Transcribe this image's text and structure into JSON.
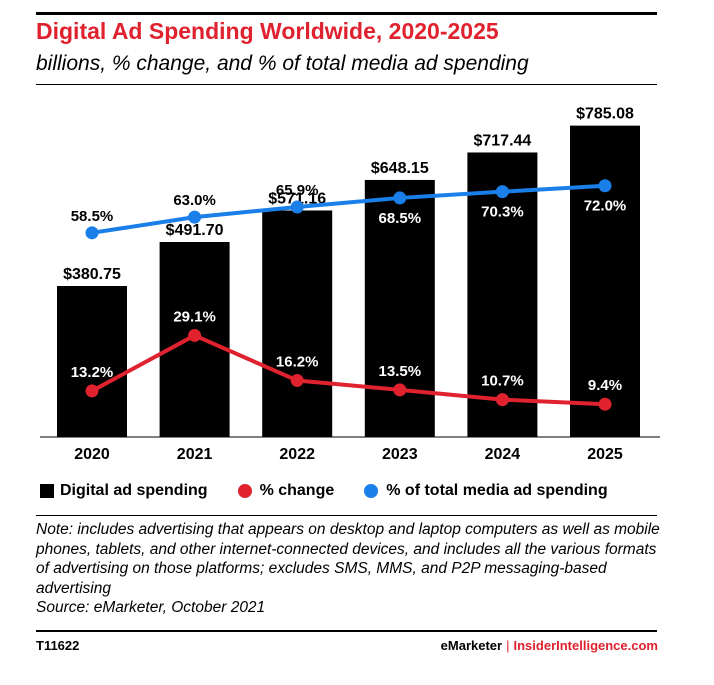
{
  "header": {
    "title": "Digital Ad Spending Worldwide, 2020-2025",
    "subtitle": "billions, % change, and % of total media ad spending"
  },
  "chart_data": {
    "type": "bar",
    "title": "Digital Ad Spending Worldwide, 2020-2025",
    "subtitle": "billions, % change, and % of total media ad spending",
    "categories": [
      "2020",
      "2021",
      "2022",
      "2023",
      "2024",
      "2025"
    ],
    "series": [
      {
        "name": "Digital ad spending",
        "kind": "bar",
        "color": "#000000",
        "values": [
          380.75,
          491.7,
          571.16,
          648.15,
          717.44,
          785.08
        ],
        "labels": [
          "$380.75",
          "$491.70",
          "$571.16",
          "$648.15",
          "$717.44",
          "$785.08"
        ]
      },
      {
        "name": "% change",
        "kind": "line",
        "color": "#e0222f",
        "values": [
          13.2,
          29.1,
          16.2,
          13.5,
          10.7,
          9.4
        ],
        "labels": [
          "13.2%",
          "29.1%",
          "16.2%",
          "13.5%",
          "10.7%",
          "9.4%"
        ]
      },
      {
        "name": "% of total media ad spending",
        "kind": "line",
        "color": "#1a7fe8",
        "values": [
          58.5,
          63.0,
          65.9,
          68.5,
          70.3,
          72.0
        ],
        "labels": [
          "58.5%",
          "63.0%",
          "65.9%",
          "68.5%",
          "70.3%",
          "72.0%"
        ]
      }
    ],
    "ylim_bars": [
      0,
      880
    ],
    "ylim_lines": [
      0,
      100
    ],
    "grid": false,
    "legend_position": "bottom-left"
  },
  "legend": [
    {
      "label": "Digital ad spending",
      "shape": "square",
      "color": "#000000"
    },
    {
      "label": "% change",
      "shape": "dot",
      "color": "#e0222f"
    },
    {
      "label": "% of total media ad spending",
      "shape": "dot",
      "color": "#1a7fe8"
    }
  ],
  "note": {
    "text": "Note: includes advertising that appears on desktop and laptop computers as well as mobile phones, tablets, and other internet-connected devices, and includes all the various formats of advertising on those platforms; excludes SMS, MMS, and P2P messaging-based advertising",
    "source": "Source: eMarketer, October 2021"
  },
  "footer": {
    "id": "T11622",
    "brand_left": "eMarketer",
    "separator": "|",
    "brand_right": "InsiderIntelligence.com"
  }
}
